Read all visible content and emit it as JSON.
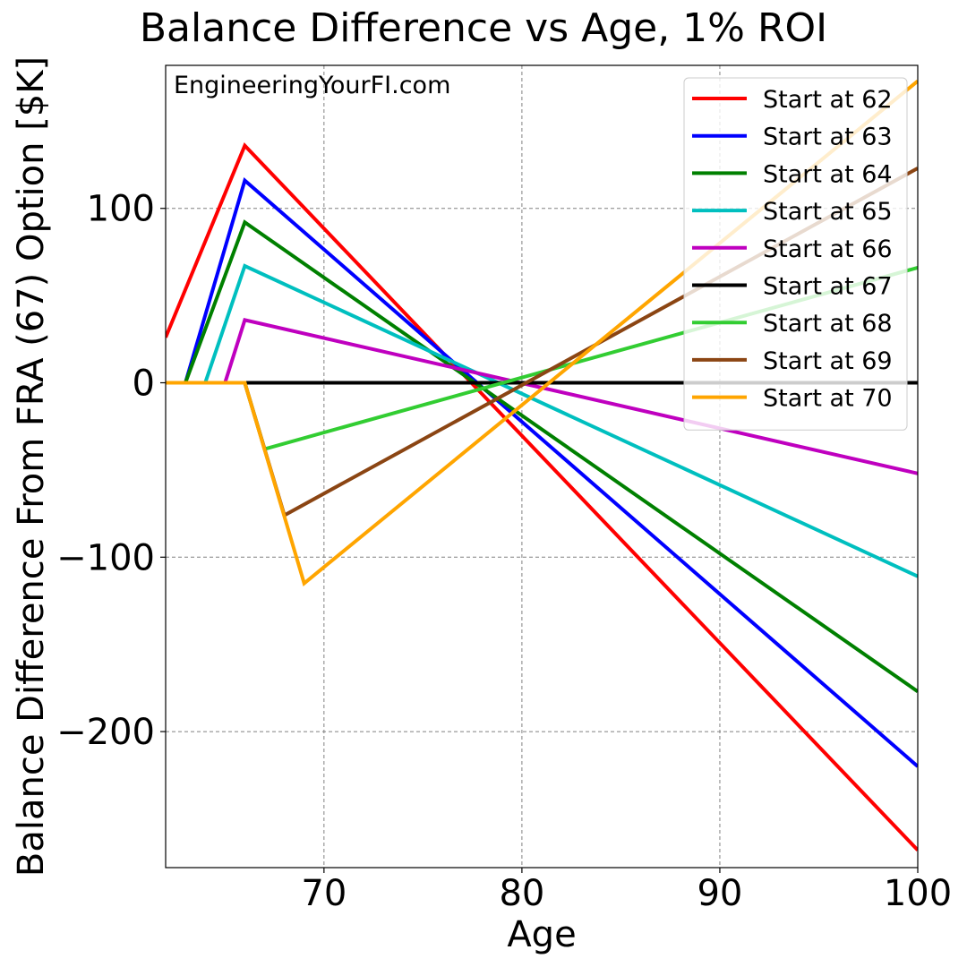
{
  "chart_data": {
    "type": "line",
    "title": "Balance Difference vs Age, 1% ROI",
    "xlabel": "Age",
    "ylabel": "Balance Difference From FRA (67) Option [$K]",
    "watermark": "EngineeringYourFI.com",
    "xlim": [
      62,
      100
    ],
    "ylim": [
      -278,
      182
    ],
    "xticks": [
      70,
      80,
      90,
      100
    ],
    "yticks": [
      -200,
      -100,
      0,
      100
    ],
    "grid": true,
    "legend_position": "top-right",
    "series": [
      {
        "name": "Start at 62",
        "color": "#ff0000",
        "x": [
          62,
          66,
          100
        ],
        "y": [
          26,
          136,
          -268
        ]
      },
      {
        "name": "Start at 63",
        "color": "#0000ff",
        "x": [
          62,
          63,
          66,
          100
        ],
        "y": [
          0,
          0,
          116,
          -220
        ]
      },
      {
        "name": "Start at 64",
        "color": "#008000",
        "x": [
          62,
          63,
          66,
          100
        ],
        "y": [
          0,
          0,
          92,
          -177
        ]
      },
      {
        "name": "Start at 65",
        "color": "#00bfbf",
        "x": [
          62,
          64,
          66,
          100
        ],
        "y": [
          0,
          0,
          67,
          -111
        ]
      },
      {
        "name": "Start at 66",
        "color": "#bf00bf",
        "x": [
          62,
          65,
          66,
          100
        ],
        "y": [
          0,
          0,
          36,
          -52
        ]
      },
      {
        "name": "Start at 67",
        "color": "#000000",
        "x": [
          62,
          100
        ],
        "y": [
          0,
          0
        ]
      },
      {
        "name": "Start at 68",
        "color": "#32cd32",
        "x": [
          62,
          66,
          67,
          100
        ],
        "y": [
          0,
          0,
          -38,
          66
        ]
      },
      {
        "name": "Start at 69",
        "color": "#8b4513",
        "x": [
          62,
          66,
          68,
          100
        ],
        "y": [
          0,
          0,
          -76,
          123
        ]
      },
      {
        "name": "Start at 70",
        "color": "#ffa500",
        "x": [
          62,
          66,
          69,
          100
        ],
        "y": [
          0,
          0,
          -115,
          173
        ]
      }
    ]
  }
}
